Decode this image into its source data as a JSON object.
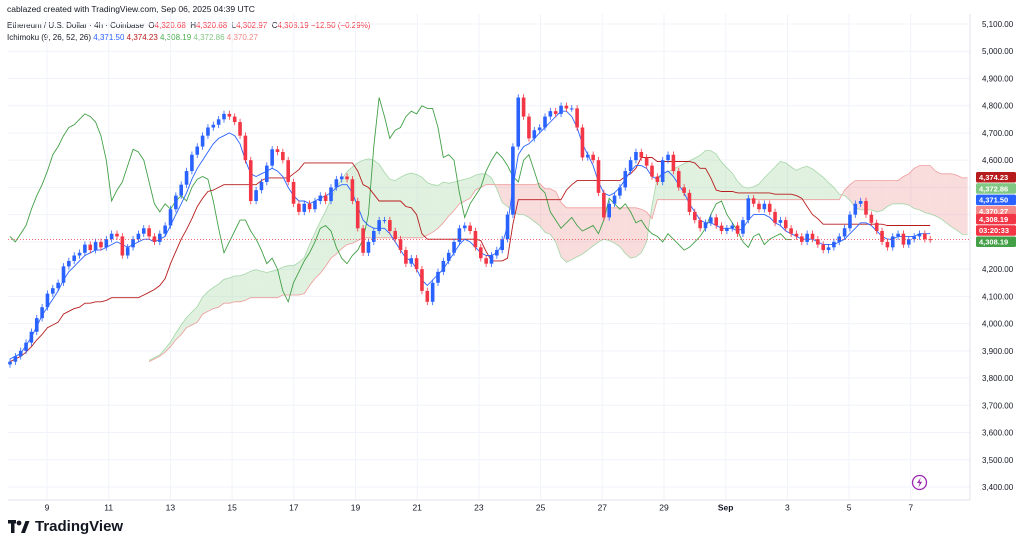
{
  "header": {
    "credit": "cablazed created with TradingView.com, Sep 06, 2025 04:39 UTC",
    "symbol": "Ethereum / U.S. Dollar · 4h · Coinbase",
    "ohlc": {
      "o_label": "O",
      "o": "4,320.68",
      "h_label": "H",
      "h": "4,320.68",
      "l_label": "L",
      "l": "4,302.97",
      "c_label": "C",
      "c": "4,308.19",
      "change": "−12.50 (−0.29%)"
    },
    "indicator": {
      "name": "Ichimoku (9, 26, 52, 26)",
      "conversion": "4,371.50",
      "base": "4,374.23",
      "lagging": "4,308.19",
      "lead1": "4,372.86",
      "lead2": "4,370.27"
    }
  },
  "brand": {
    "name": "TradingView"
  },
  "colors": {
    "up": "#2962ff",
    "down": "#f23645",
    "conversion_line": "#2962ff",
    "base_line": "#b71c1c",
    "lagging_span": "#43a047",
    "cloud_bull": "#a5d6a7",
    "cloud_bear": "#ef9a9a"
  },
  "chart_data": {
    "type": "line",
    "ylim": [
      3400,
      5100
    ],
    "y_ticks": [
      "5,100.00",
      "5,000.00",
      "4,900.00",
      "4,800.00",
      "4,700.00",
      "4,600.00",
      "4,500.00",
      "4,400.00",
      "4,300.00",
      "4,200.00",
      "4,100.00",
      "4,000.00",
      "3,900.00",
      "3,800.00",
      "3,700.00",
      "3,600.00",
      "3,500.00",
      "3,400.00"
    ],
    "x_ticks": [
      "9",
      "11",
      "13",
      "15",
      "17",
      "19",
      "21",
      "23",
      "25",
      "27",
      "29",
      "Sep",
      "3",
      "5",
      "7"
    ],
    "current_price": 4308.19,
    "price_labels": [
      {
        "value": "4,374.23",
        "color": "#b71c1c"
      },
      {
        "value": "4,372.86",
        "color": "#81c784"
      },
      {
        "value": "4,371.50",
        "color": "#2962ff"
      },
      {
        "value": "4,370.27",
        "color": "#f48a8a"
      },
      {
        "value": "4,308.19",
        "color": "#f23645"
      },
      {
        "value": "03:20:33",
        "color": "#f23645"
      },
      {
        "value": "4,308.19",
        "color": "#43a047"
      }
    ],
    "series": [
      {
        "close": [
          3860,
          3880,
          3900,
          3930,
          3970,
          4020,
          4060,
          4110,
          4130,
          4150,
          4210,
          4230,
          4250,
          4260,
          4290,
          4270,
          4300,
          4280,
          4310,
          4330,
          4320,
          4250,
          4280,
          4310,
          4330,
          4350,
          4320,
          4300,
          4330,
          4360,
          4420,
          4470,
          4510,
          4560,
          4620,
          4650,
          4690,
          4720,
          4730,
          4750,
          4770,
          4760,
          4740,
          4690,
          4600,
          4450,
          4490,
          4520,
          4580,
          4640,
          4630,
          4600,
          4520,
          4440,
          4410,
          4440,
          4420,
          4450,
          4470,
          4450,
          4500,
          4530,
          4540,
          4530,
          4450,
          4350,
          4260,
          4300,
          4340,
          4380,
          4380,
          4340,
          4310,
          4270,
          4220,
          4240,
          4200,
          4120,
          4080,
          4150,
          4190,
          4230,
          4260,
          4300,
          4350,
          4360,
          4340,
          4280,
          4240,
          4220,
          4250,
          4270,
          4310,
          4400,
          4650,
          4830,
          4760,
          4680,
          4710,
          4720,
          4760,
          4780,
          4770,
          4800,
          4790,
          4790,
          4720,
          4610,
          4620,
          4600,
          4480,
          4390,
          4440,
          4470,
          4500,
          4560,
          4600,
          4630,
          4610,
          4580,
          4540,
          4520,
          4600,
          4620,
          4560,
          4500,
          4480,
          4410,
          4380,
          4350,
          4370,
          4390,
          4360,
          4340,
          4350,
          4360,
          4330,
          4380,
          4460,
          4440,
          4420,
          4440,
          4410,
          4370,
          4380,
          4350,
          4330,
          4320,
          4300,
          4330,
          4310,
          4290,
          4270,
          4280,
          4300,
          4320,
          4350,
          4400,
          4440,
          4450,
          4400,
          4370,
          4340,
          4300,
          4280,
          4320,
          4330,
          4290,
          4310,
          4320,
          4330,
          4310,
          4308
        ]
      },
      {
        "name": "Conversion Line",
        "values": [
          3870,
          3880,
          3890,
          3920,
          3950,
          3990,
          4030,
          4060,
          4090,
          4120,
          4160,
          4190,
          4210,
          4230,
          4250,
          4260,
          4270,
          4270,
          4280,
          4290,
          4300,
          4290,
          4280,
          4290,
          4300,
          4310,
          4310,
          4300,
          4310,
          4320,
          4360,
          4400,
          4440,
          4480,
          4530,
          4570,
          4600,
          4630,
          4660,
          4680,
          4690,
          4700,
          4690,
          4660,
          4600,
          4550,
          4540,
          4550,
          4560,
          4570,
          4560,
          4540,
          4500,
          4470,
          4450,
          4450,
          4440,
          4450,
          4460,
          4470,
          4480,
          4500,
          4510,
          4510,
          4480,
          4430,
          4380,
          4360,
          4350,
          4350,
          4350,
          4330,
          4300,
          4270,
          4240,
          4230,
          4200,
          4160,
          4140,
          4160,
          4180,
          4200,
          4230,
          4260,
          4290,
          4310,
          4300,
          4280,
          4260,
          4250,
          4250,
          4260,
          4290,
          4360,
          4500,
          4620,
          4650,
          4660,
          4680,
          4700,
          4720,
          4740,
          4760,
          4780,
          4780,
          4760,
          4720,
          4660,
          4620,
          4580,
          4520,
          4480,
          4470,
          4480,
          4500,
          4530,
          4560,
          4580,
          4580,
          4570,
          4540,
          4530,
          4550,
          4560,
          4540,
          4510,
          4480,
          4440,
          4410,
          4380,
          4370,
          4370,
          4360,
          4350,
          4350,
          4350,
          4340,
          4350,
          4380,
          4400,
          4400,
          4400,
          4390,
          4370,
          4360,
          4340,
          4330,
          4320,
          4310,
          4310,
          4310,
          4300,
          4290,
          4290,
          4290,
          4300,
          4310,
          4330,
          4350,
          4370,
          4370,
          4360,
          4340,
          4320,
          4310,
          4310,
          4320,
          4320,
          4320,
          4320,
          4330,
          4330,
          4330
        ]
      }
    ]
  }
}
